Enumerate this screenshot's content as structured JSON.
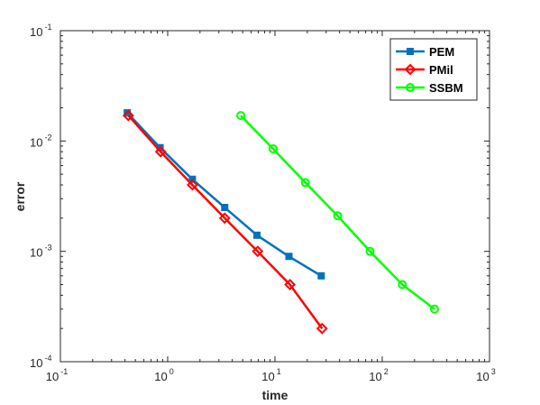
{
  "chart_data": {
    "type": "line",
    "title": "",
    "xlabel": "time",
    "ylabel": "error",
    "xscale": "log",
    "yscale": "log",
    "xlim": [
      0.1,
      1000
    ],
    "ylim": [
      0.0001,
      0.1
    ],
    "x_ticks": [
      {
        "value": 0.1,
        "base": "10",
        "exp": "-1"
      },
      {
        "value": 1,
        "base": "10",
        "exp": "0"
      },
      {
        "value": 10,
        "base": "10",
        "exp": "1"
      },
      {
        "value": 100,
        "base": "10",
        "exp": "2"
      },
      {
        "value": 1000,
        "base": "10",
        "exp": "3"
      }
    ],
    "y_ticks": [
      {
        "value": 0.0001,
        "base": "10",
        "exp": "-4"
      },
      {
        "value": 0.001,
        "base": "10",
        "exp": "-3"
      },
      {
        "value": 0.01,
        "base": "10",
        "exp": "-2"
      },
      {
        "value": 0.1,
        "base": "10",
        "exp": "-1"
      }
    ],
    "grid": false,
    "legend_position": "top-right",
    "series": [
      {
        "name": "PEM",
        "color": "#0072bd",
        "marker": "square",
        "x": [
          0.42,
          0.85,
          1.7,
          3.4,
          6.8,
          13.5,
          27
        ],
        "y": [
          0.018,
          0.0087,
          0.0045,
          0.0025,
          0.0014,
          0.0009,
          0.0006
        ]
      },
      {
        "name": "PMil",
        "color": "#ff0000",
        "marker": "diamond",
        "x": [
          0.43,
          0.86,
          1.7,
          3.4,
          6.9,
          13.8,
          27.5
        ],
        "y": [
          0.017,
          0.008,
          0.004,
          0.002,
          0.001,
          0.0005,
          0.0002
        ]
      },
      {
        "name": "SSBM",
        "color": "#00ff00",
        "marker": "circle",
        "x": [
          4.8,
          9.6,
          19.2,
          38.4,
          77,
          154,
          307
        ],
        "y": [
          0.017,
          0.0085,
          0.0042,
          0.0021,
          0.001,
          0.0005,
          0.0003
        ]
      }
    ]
  }
}
